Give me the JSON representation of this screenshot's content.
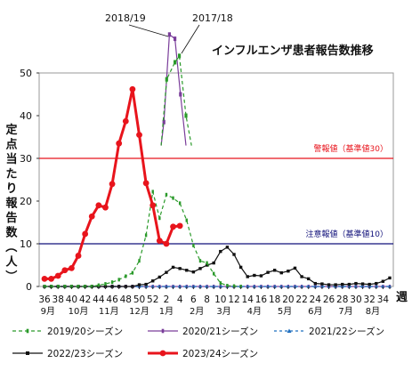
{
  "chart_data": {
    "type": "line",
    "title": "インフルエンザ患者報告数推移",
    "ylabel": "定点当たり報告数（人）",
    "xlabel_suffix": "週",
    "ylim": [
      0,
      60
    ],
    "yticks": [
      0,
      10,
      20,
      30,
      40,
      50
    ],
    "weeks": [
      36,
      37,
      38,
      39,
      40,
      41,
      42,
      43,
      44,
      45,
      46,
      47,
      48,
      49,
      50,
      51,
      52,
      1,
      2,
      3,
      4,
      5,
      6,
      7,
      8,
      9,
      10,
      11,
      12,
      13,
      14,
      15,
      16,
      17,
      18,
      19,
      20,
      21,
      22,
      23,
      24,
      25,
      26,
      27,
      28,
      29,
      30,
      31,
      32,
      33,
      34,
      35
    ],
    "week_tick_labels": [
      "36",
      "38",
      "40",
      "42",
      "44",
      "46",
      "48",
      "50",
      "52",
      "2",
      "4",
      "6",
      "8",
      "10",
      "12",
      "14",
      "16",
      "18",
      "20",
      "22",
      "24",
      "26",
      "28",
      "30",
      "32",
      "34"
    ],
    "month_labels": [
      "9月",
      "10月",
      "11月",
      "12月",
      "1月",
      "2月",
      "3月",
      "4月",
      "5月",
      "6月",
      "7月",
      "8月"
    ],
    "thresholds": [
      {
        "label": "警報値（基準値30）",
        "value": 30,
        "color": "#e8141c"
      },
      {
        "label": "注意報値（基準値10）",
        "value": 10,
        "color": "#10107a"
      }
    ],
    "callouts": [
      {
        "text": "2018/19",
        "series": "2018/19"
      },
      {
        "text": "2017/18",
        "series": "2017/18"
      }
    ],
    "series": [
      {
        "name": "2019/20シーズン",
        "color": "#2a9a2a",
        "style": "dash-marker",
        "values": [
          0,
          0,
          0,
          0,
          0,
          0,
          0,
          0,
          0.3,
          0.6,
          1,
          1.6,
          2.4,
          3.2,
          6,
          12,
          22.2,
          16,
          21.5,
          20.7,
          19.5,
          15.5,
          9.6,
          6,
          5.5,
          3,
          0.8,
          0.2,
          0.1,
          0,
          null,
          null,
          null,
          null,
          null,
          null,
          null,
          null,
          null,
          null,
          null,
          null,
          null,
          null,
          null,
          null,
          null,
          null,
          null,
          null,
          null,
          null
        ]
      },
      {
        "name": "2020/21シーズン",
        "color": "#7a3d9a",
        "style": "solid-marker",
        "values": [
          0,
          0,
          0,
          0,
          0,
          0,
          0,
          0,
          0,
          0,
          0,
          0,
          0,
          0,
          0,
          0,
          0,
          0,
          0,
          0,
          0,
          0,
          0,
          0,
          0,
          0,
          0,
          0,
          0,
          0,
          0,
          0,
          0,
          0,
          0,
          0,
          0,
          0,
          0,
          0,
          0,
          0,
          0,
          0,
          0,
          0,
          0,
          0,
          0,
          0,
          0,
          0
        ]
      },
      {
        "name": "2021/22シーズン",
        "color": "#1f6fbf",
        "style": "dash-triangle",
        "values": [
          0,
          0,
          0,
          0,
          0,
          0,
          0,
          0,
          0,
          0,
          0,
          0,
          0,
          0,
          0,
          0,
          0,
          0,
          0,
          0,
          0,
          0,
          0,
          0,
          0,
          0,
          0,
          0,
          0,
          0,
          0,
          0,
          0,
          0,
          0,
          0,
          0,
          0,
          0,
          0,
          0,
          0,
          0,
          0,
          0,
          0,
          0,
          0,
          0,
          0,
          0,
          0
        ]
      },
      {
        "name": "2022/23シーズン",
        "color": "#111111",
        "style": "solid-square",
        "values": [
          0,
          0,
          0,
          0,
          0,
          0,
          0,
          0,
          0,
          0,
          0,
          0,
          0,
          0,
          0.4,
          0.5,
          1.3,
          2.2,
          3.3,
          4.5,
          4.2,
          3.8,
          3.4,
          4.2,
          5,
          5.5,
          8.2,
          9.2,
          7.5,
          4.5,
          2.3,
          2.6,
          2.5,
          3.3,
          3.8,
          3.2,
          3.6,
          4.3,
          2.3,
          1.8,
          0.7,
          0.6,
          0.4,
          0.4,
          0.5,
          0.5,
          0.7,
          0.6,
          0.5,
          0.7,
          1.2,
          2
        ]
      },
      {
        "name": "2023/24シーズン",
        "color": "#e8141c",
        "style": "thick-dot",
        "values": [
          1.8,
          1.8,
          2.5,
          3.8,
          4.3,
          7.2,
          12.3,
          16.4,
          19,
          18.5,
          24,
          33.5,
          38.7,
          46.2,
          35.5,
          24.2,
          19,
          10.7,
          10,
          14,
          14.2,
          null,
          null,
          null,
          null,
          null,
          null,
          null,
          null,
          null,
          null,
          null,
          null,
          null,
          null,
          null,
          null,
          null,
          null,
          null,
          null,
          null,
          null,
          null,
          null,
          null,
          null,
          null,
          null,
          null,
          null,
          null
        ]
      },
      {
        "name": "2018/19",
        "color": "#7a3d9a",
        "style": "solid-marker-inset",
        "values": [
          null,
          null,
          null,
          null,
          null,
          null,
          null,
          null,
          null,
          null,
          null,
          null,
          null,
          null,
          null,
          null,
          null,
          null,
          null,
          null,
          null,
          null,
          null,
          null,
          null,
          null,
          null,
          null,
          null,
          null,
          null,
          null,
          null,
          null,
          null,
          null,
          null,
          null,
          null,
          null,
          null,
          null,
          null,
          null,
          null,
          null,
          null,
          null,
          null,
          null,
          null,
          null
        ],
        "inset_points": [
          [
            0.5,
            33
          ],
          [
            1,
            38.5
          ],
          [
            2,
            59
          ],
          [
            3,
            58
          ],
          [
            4,
            45
          ],
          [
            5,
            33
          ]
        ]
      },
      {
        "name": "2017/18",
        "color": "#2a9a2a",
        "style": "dash-marker-inset",
        "values": [
          null,
          null,
          null,
          null,
          null,
          null,
          null,
          null,
          null,
          null,
          null,
          null,
          null,
          null,
          null,
          null,
          null,
          null,
          null,
          null,
          null,
          null,
          null,
          null,
          null,
          null,
          null,
          null,
          null,
          null,
          null,
          null,
          null,
          null,
          null,
          null,
          null,
          null,
          null,
          null,
          null,
          null,
          null,
          null,
          null,
          null,
          null,
          null,
          null,
          null,
          null,
          null
        ],
        "inset_points": [
          [
            0.5,
            33
          ],
          [
            1.5,
            48.5
          ],
          [
            3,
            52.5
          ],
          [
            3.8,
            54
          ],
          [
            5,
            40
          ],
          [
            6,
            33
          ]
        ]
      }
    ]
  }
}
